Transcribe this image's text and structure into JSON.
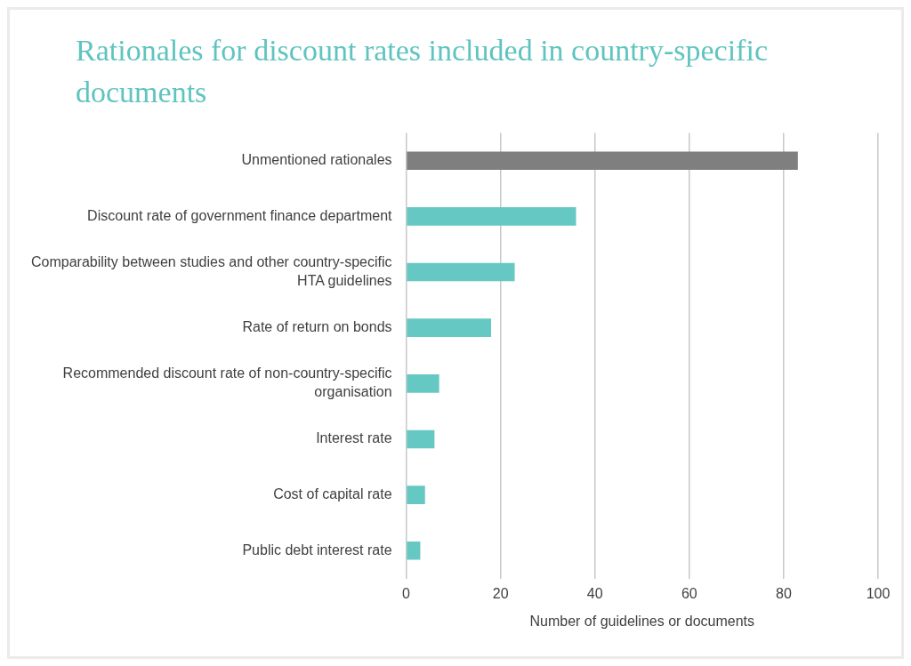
{
  "chart_data": {
    "type": "bar",
    "orientation": "horizontal",
    "title": "Rationales for discount rates included in country-specific documents",
    "xlabel": "Number of guidelines or documents",
    "categories": [
      "Unmentioned rationales",
      "Discount rate of government finance department",
      "Comparability between studies and other country-specific HTA guidelines",
      "Rate of return on bonds",
      "Recommended discount rate of non-country-specific organisation",
      "Interest rate",
      "Cost of capital rate",
      "Public debt interest rate"
    ],
    "values": [
      83,
      36,
      23,
      18,
      7,
      6,
      4,
      3
    ],
    "colors": [
      "#7f7f7f",
      "#66c8c2",
      "#66c8c2",
      "#66c8c2",
      "#66c8c2",
      "#66c8c2",
      "#66c8c2",
      "#66c8c2"
    ],
    "xlim": [
      0,
      100
    ],
    "xticks": [
      0,
      20,
      40,
      60,
      80,
      100
    ],
    "grid": "x",
    "legend": false
  }
}
